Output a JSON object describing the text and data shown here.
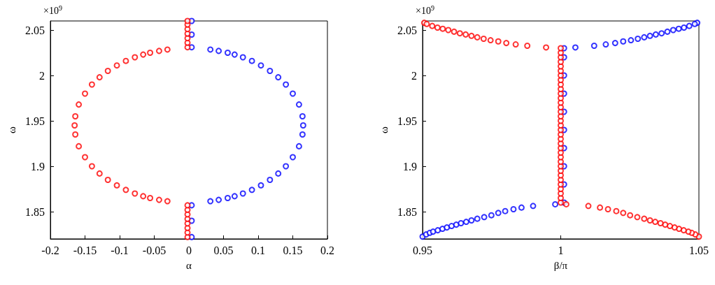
{
  "chart_data": [
    {
      "type": "scatter",
      "xlabel": "α",
      "ylabel": "ω",
      "annotations": [
        "×10$^{9}$"
      ],
      "xlim": [
        -0.2,
        0.2
      ],
      "xticks": [
        -0.2,
        -0.15,
        -0.1,
        -0.05,
        0,
        0.05,
        0.1,
        0.15,
        0.2
      ],
      "ylim": [
        1.82,
        2.06
      ],
      "yticks": [
        1.85,
        1.9,
        1.95,
        2,
        2.05
      ],
      "grid": false,
      "marker": "circle",
      "series": [
        {
          "color": "#0000ff",
          "x": [
            0.004,
            0.004,
            0.004,
            0.004,
            0.004,
            0.004,
            0.031,
            0.043,
            0.056,
            0.066,
            0.078,
            0.091,
            0.104,
            0.117,
            0.129,
            0.14,
            0.15,
            0.159,
            0.164,
            0.165,
            0.164,
            0.159,
            0.15,
            0.14,
            0.129,
            0.117,
            0.104,
            0.091,
            0.078,
            0.066,
            0.056,
            0.043,
            0.031
          ],
          "values": [
            2.031,
            2.045,
            2.06,
            1.822,
            1.84,
            1.857,
            2.0285,
            2.027,
            2.025,
            2.023,
            2.02,
            2.016,
            2.011,
            2.005,
            1.998,
            1.99,
            1.98,
            1.968,
            1.955,
            1.945,
            1.935,
            1.922,
            1.91,
            1.9,
            1.892,
            1.885,
            1.879,
            1.874,
            1.87,
            1.867,
            1.865,
            1.863,
            1.8615
          ]
        },
        {
          "color": "#ff0000",
          "x": [
            -0.002,
            -0.002,
            -0.002,
            -0.002,
            -0.002,
            -0.002,
            -0.002,
            -0.031,
            -0.043,
            -0.056,
            -0.066,
            -0.078,
            -0.091,
            -0.104,
            -0.117,
            -0.129,
            -0.14,
            -0.15,
            -0.159,
            -0.164,
            -0.165,
            -0.164,
            -0.159,
            -0.15,
            -0.14,
            -0.129,
            -0.117,
            -0.104,
            -0.091,
            -0.078,
            -0.066,
            -0.056,
            -0.043,
            -0.031,
            -0.002,
            -0.002,
            -0.002,
            -0.002,
            -0.002,
            -0.002,
            -0.002,
            -0.002
          ],
          "values": [
            2.031,
            2.036,
            2.041,
            2.046,
            2.051,
            2.056,
            2.06,
            2.0285,
            2.027,
            2.025,
            2.023,
            2.02,
            2.016,
            2.011,
            2.005,
            1.998,
            1.99,
            1.98,
            1.968,
            1.955,
            1.945,
            1.935,
            1.922,
            1.91,
            1.9,
            1.892,
            1.885,
            1.879,
            1.874,
            1.87,
            1.867,
            1.865,
            1.863,
            1.8615,
            1.822,
            1.827,
            1.832,
            1.837,
            1.842,
            1.847,
            1.852,
            1.857
          ]
        }
      ]
    },
    {
      "type": "scatter",
      "xlabel": "β/π",
      "ylabel": "ω",
      "annotations": [
        "×10$^{9}$"
      ],
      "xlim": [
        0.95,
        1.05
      ],
      "xticks": [
        0.95,
        1,
        1.05
      ],
      "ylim": [
        1.82,
        2.06
      ],
      "yticks": [
        1.85,
        1.9,
        1.95,
        2,
        2.05
      ],
      "grid": false,
      "marker": "circle",
      "series": [
        {
          "color": "#0000ff",
          "x": [
            1.0012,
            1.0012,
            1.0012,
            1.0012,
            1.0012,
            1.0012,
            1.0012,
            1.0012,
            1.0012,
            1.0012,
            0.95,
            0.9513,
            0.9526,
            0.9538,
            0.9555,
            0.9572,
            0.9588,
            0.9605,
            0.9622,
            0.9639,
            0.9658,
            0.9677,
            0.9698,
            0.9723,
            0.9749,
            0.9774,
            0.9799,
            0.9829,
            0.9858,
            0.99,
            0.998,
            1.0494,
            1.0485,
            1.0465,
            1.0446,
            1.0427,
            1.0407,
            1.0386,
            1.0365,
            1.0344,
            1.0323,
            1.0302,
            1.0279,
            1.0254,
            1.0226,
            1.0197,
            1.0163,
            1.0121,
            1.0053
          ],
          "values": [
            1.86,
            1.88,
            1.9,
            1.92,
            1.94,
            1.96,
            1.98,
            2.0,
            2.02,
            2.03,
            1.8225,
            1.8249,
            1.8267,
            1.828,
            1.8295,
            1.8311,
            1.8326,
            1.8342,
            1.8357,
            1.8373,
            1.8388,
            1.8404,
            1.8422,
            1.844,
            1.846,
            1.8486,
            1.8506,
            1.8527,
            1.8545,
            1.8563,
            1.8581,
            2.058,
            2.0567,
            2.0545,
            2.0527,
            2.0514,
            2.05,
            2.0482,
            2.0464,
            2.0451,
            2.0436,
            2.042,
            2.0404,
            2.0388,
            2.0375,
            2.0357,
            2.0342,
            2.0327,
            2.0308
          ]
        },
        {
          "color": "#ff0000",
          "x": [
            0.9506,
            0.9515,
            0.9535,
            0.9554,
            0.9573,
            0.9593,
            0.9614,
            0.9635,
            0.9656,
            0.9677,
            0.9698,
            0.9721,
            0.9746,
            0.9774,
            0.9803,
            0.9837,
            0.9879,
            0.9947,
            1.0,
            1.0,
            1.0,
            1.0,
            1.0,
            1.0,
            1.0,
            1.0,
            1.0,
            1.0,
            1.0,
            1.0,
            1.0,
            1.0,
            1.0,
            1.0,
            1.0,
            1.0,
            1.0,
            1.0,
            1.0,
            1.0,
            1.0,
            1.0,
            1.0,
            1.0,
            1.0,
            1.0,
            1.0,
            1.0,
            1.0,
            1.0,
            1.0,
            1.0,
            1.0,
            1.05,
            1.0487,
            1.0474,
            1.0462,
            1.0445,
            1.0428,
            1.0412,
            1.0395,
            1.0378,
            1.0361,
            1.0342,
            1.0323,
            1.0302,
            1.0277,
            1.0251,
            1.0226,
            1.0201,
            1.0171,
            1.0142,
            1.01,
            1.002
          ],
          "values": [
            2.058,
            2.0567,
            2.0545,
            2.0527,
            2.0514,
            2.05,
            2.0482,
            2.0464,
            2.0451,
            2.0436,
            2.042,
            2.0404,
            2.0388,
            2.0375,
            2.0357,
            2.0342,
            2.0327,
            2.0308,
            1.86,
            1.865,
            1.87,
            1.875,
            1.88,
            1.885,
            1.89,
            1.895,
            1.9,
            1.905,
            1.91,
            1.915,
            1.92,
            1.925,
            1.93,
            1.935,
            1.94,
            1.945,
            1.95,
            1.955,
            1.96,
            1.965,
            1.97,
            1.975,
            1.98,
            1.985,
            1.99,
            1.995,
            2.0,
            2.005,
            2.01,
            2.015,
            2.02,
            2.025,
            2.03,
            1.8225,
            1.8249,
            1.8267,
            1.828,
            1.8295,
            1.8311,
            1.8326,
            1.8342,
            1.8357,
            1.8373,
            1.8388,
            1.8404,
            1.8422,
            1.844,
            1.846,
            1.8486,
            1.8506,
            1.8527,
            1.8545,
            1.8563,
            1.8581
          ]
        }
      ]
    }
  ]
}
